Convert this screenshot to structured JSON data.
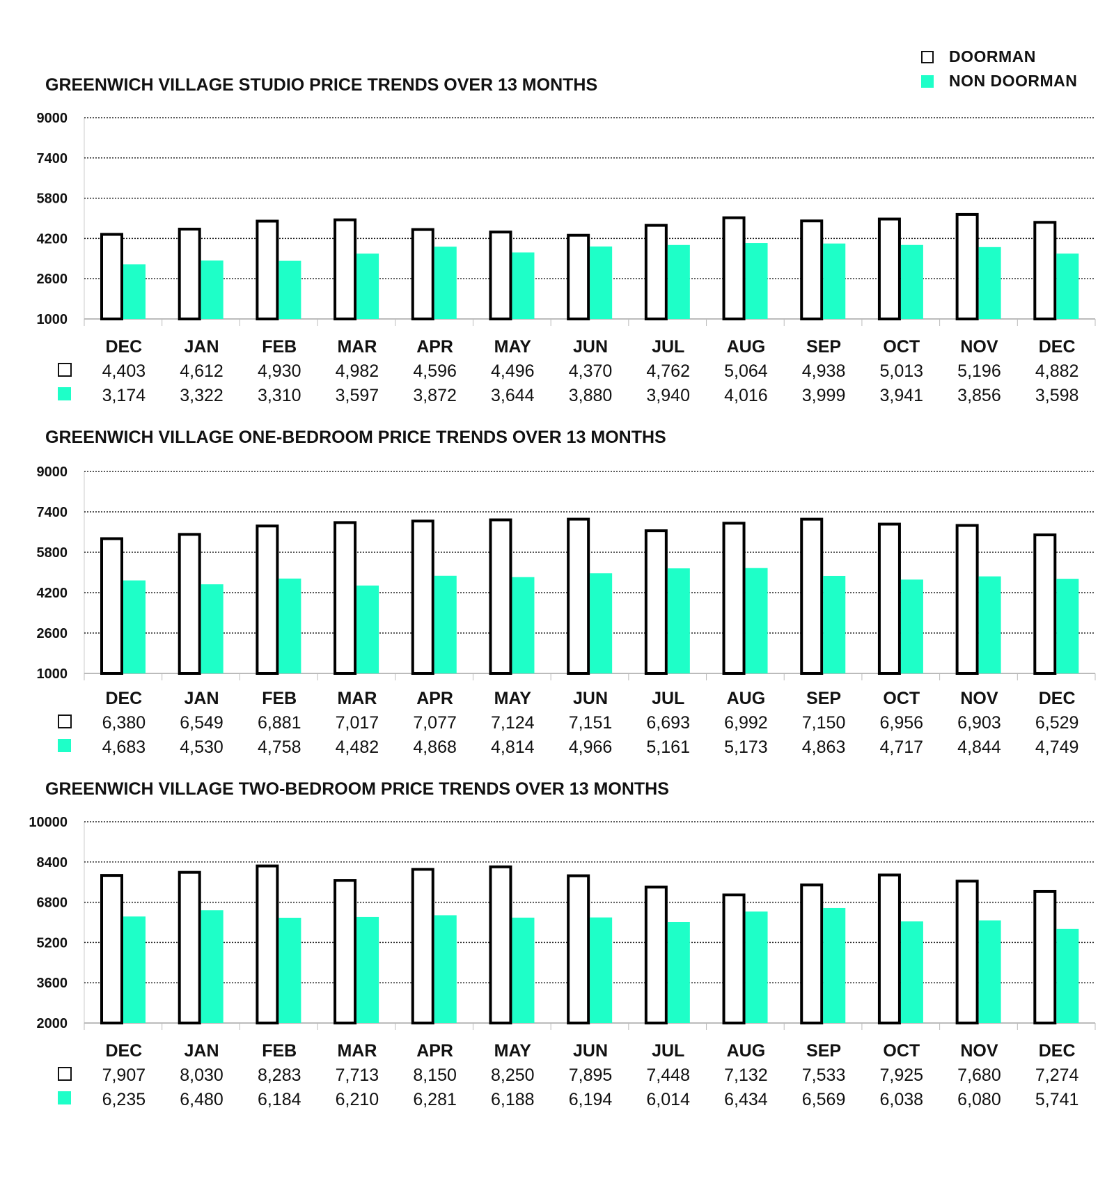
{
  "legend": {
    "doorman": "DOORMAN",
    "non_doorman": "NON DOORMAN"
  },
  "colors": {
    "doorman_fill": "#ffffff",
    "doorman_border": "#000000",
    "non_doorman": "#1effc8"
  },
  "chart_data": [
    {
      "type": "bar",
      "title": "GREENWICH VILLAGE STUDIO PRICE TRENDS OVER 13 MONTHS",
      "categories": [
        "DEC",
        "JAN",
        "FEB",
        "MAR",
        "APR",
        "MAY",
        "JUN",
        "JUL",
        "AUG",
        "SEP",
        "OCT",
        "NOV",
        "DEC"
      ],
      "ylim": [
        1000,
        9000
      ],
      "yticks": [
        1000,
        2600,
        4200,
        5800,
        7400,
        9000
      ],
      "grid": true,
      "series": [
        {
          "name": "DOORMAN",
          "values": [
            4403,
            4612,
            4930,
            4982,
            4596,
            4496,
            4370,
            4762,
            5064,
            4938,
            5013,
            5196,
            4882
          ],
          "labels": [
            "4,403",
            "4,612",
            "4,930",
            "4,982",
            "4,596",
            "4,496",
            "4,370",
            "4,762",
            "5,064",
            "4,938",
            "5,013",
            "5,196",
            "4,882"
          ]
        },
        {
          "name": "NON DOORMAN",
          "values": [
            3174,
            3322,
            3310,
            3597,
            3872,
            3644,
            3880,
            3940,
            4016,
            3999,
            3941,
            3856,
            3598
          ],
          "labels": [
            "3,174",
            "3,322",
            "3,310",
            "3,597",
            "3,872",
            "3,644",
            "3,880",
            "3,940",
            "4,016",
            "3,999",
            "3,941",
            "3,856",
            "3,598"
          ]
        }
      ]
    },
    {
      "type": "bar",
      "title": "GREENWICH VILLAGE ONE-BEDROOM PRICE TRENDS OVER 13 MONTHS",
      "categories": [
        "DEC",
        "JAN",
        "FEB",
        "MAR",
        "APR",
        "MAY",
        "JUN",
        "JUL",
        "AUG",
        "SEP",
        "OCT",
        "NOV",
        "DEC"
      ],
      "ylim": [
        1000,
        9000
      ],
      "yticks": [
        1000,
        2600,
        4200,
        5800,
        7400,
        9000
      ],
      "grid": true,
      "series": [
        {
          "name": "DOORMAN",
          "values": [
            6380,
            6549,
            6881,
            7017,
            7077,
            7124,
            7151,
            6693,
            6992,
            7150,
            6956,
            6903,
            6529
          ],
          "labels": [
            "6,380",
            "6,549",
            "6,881",
            "7,017",
            "7,077",
            "7,124",
            "7,151",
            "6,693",
            "6,992",
            "7,150",
            "6,956",
            "6,903",
            "6,529"
          ]
        },
        {
          "name": "NON DOORMAN",
          "values": [
            4683,
            4530,
            4758,
            4482,
            4868,
            4814,
            4966,
            5161,
            5173,
            4863,
            4717,
            4844,
            4749
          ],
          "labels": [
            "4,683",
            "4,530",
            "4,758",
            "4,482",
            "4,868",
            "4,814",
            "4,966",
            "5,161",
            "5,173",
            "4,863",
            "4,717",
            "4,844",
            "4,749"
          ]
        }
      ]
    },
    {
      "type": "bar",
      "title": "GREENWICH VILLAGE TWO-BEDROOM PRICE TRENDS OVER 13 MONTHS",
      "categories": [
        "DEC",
        "JAN",
        "FEB",
        "MAR",
        "APR",
        "MAY",
        "JUN",
        "JUL",
        "AUG",
        "SEP",
        "OCT",
        "NOV",
        "DEC"
      ],
      "ylim": [
        2000,
        10000
      ],
      "yticks": [
        2000,
        3600,
        5200,
        6800,
        8400,
        10000
      ],
      "grid": true,
      "series": [
        {
          "name": "DOORMAN",
          "values": [
            7907,
            8030,
            8283,
            7713,
            8150,
            8250,
            7895,
            7448,
            7132,
            7533,
            7925,
            7680,
            7274
          ],
          "labels": [
            "7,907",
            "8,030",
            "8,283",
            "7,713",
            "8,150",
            "8,250",
            "7,895",
            "7,448",
            "7,132",
            "7,533",
            "7,925",
            "7,680",
            "7,274"
          ]
        },
        {
          "name": "NON DOORMAN",
          "values": [
            6235,
            6480,
            6184,
            6210,
            6281,
            6188,
            6194,
            6014,
            6434,
            6569,
            6038,
            6080,
            5741
          ],
          "labels": [
            "6,235",
            "6,480",
            "6,184",
            "6,210",
            "6,281",
            "6,188",
            "6,194",
            "6,014",
            "6,434",
            "6,569",
            "6,038",
            "6,080",
            "5,741"
          ]
        }
      ]
    }
  ]
}
